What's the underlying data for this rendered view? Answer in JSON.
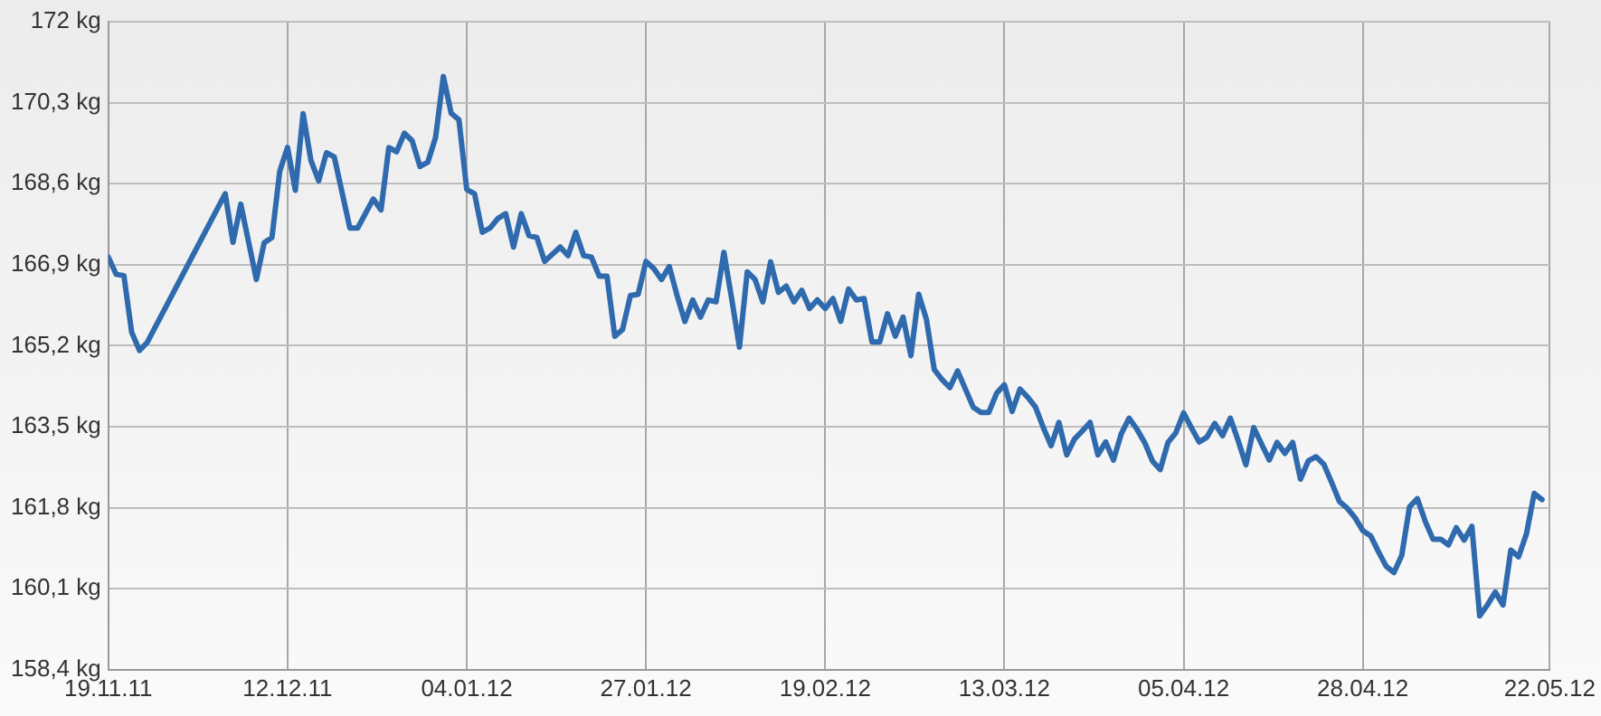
{
  "chart_data": {
    "type": "line",
    "marker": "none",
    "grid": true,
    "legend": false,
    "xlim": [
      "2011-11-19",
      "2012-05-22"
    ],
    "xticks": [
      {
        "value": "2011-11-19",
        "label": "19.11.11"
      },
      {
        "value": "2011-12-12",
        "label": "12.12.11"
      },
      {
        "value": "2012-01-04",
        "label": "04.01.12"
      },
      {
        "value": "2012-01-27",
        "label": "27.01.12"
      },
      {
        "value": "2012-02-19",
        "label": "19.02.12"
      },
      {
        "value": "2012-03-13",
        "label": "13.03.12"
      },
      {
        "value": "2012-04-05",
        "label": "05.04.12"
      },
      {
        "value": "2012-04-28",
        "label": "28.04.12"
      },
      {
        "value": "2012-05-22",
        "label": "22.05.12"
      }
    ],
    "ylim": [
      158.4,
      172
    ],
    "yticks": [
      {
        "value": 158.4,
        "label": "158,4 kg"
      },
      {
        "value": 160.1,
        "label": "160,1 kg"
      },
      {
        "value": 161.8,
        "label": "161,8 kg"
      },
      {
        "value": 163.5,
        "label": "163,5 kg"
      },
      {
        "value": 165.2,
        "label": "165,2 kg"
      },
      {
        "value": 166.9,
        "label": "166,9 kg"
      },
      {
        "value": 168.6,
        "label": "168,6 kg"
      },
      {
        "value": 170.3,
        "label": "170,3 kg"
      },
      {
        "value": 172,
        "label": "172 kg"
      }
    ],
    "series": [
      {
        "color": "#2e6aad",
        "x": [
          "2011-11-19",
          "2011-11-20",
          "2011-11-21",
          "2011-11-22",
          "2011-11-23",
          "2011-11-24",
          "2011-12-04",
          "2011-12-05",
          "2011-12-06",
          "2011-12-08",
          "2011-12-09",
          "2011-12-10",
          "2011-12-11",
          "2011-12-12",
          "2011-12-13",
          "2011-12-14",
          "2011-12-15",
          "2011-12-16",
          "2011-12-17",
          "2011-12-18",
          "2011-12-20",
          "2011-12-21",
          "2011-12-23",
          "2011-12-24",
          "2011-12-25",
          "2011-12-26",
          "2011-12-27",
          "2011-12-28",
          "2011-12-29",
          "2011-12-30",
          "2011-12-31",
          "2012-01-01",
          "2012-01-02",
          "2012-01-03",
          "2012-01-04",
          "2012-01-05",
          "2012-01-06",
          "2012-01-07",
          "2012-01-08",
          "2012-01-09",
          "2012-01-10",
          "2012-01-11",
          "2012-01-12",
          "2012-01-13",
          "2012-01-14",
          "2012-01-16",
          "2012-01-17",
          "2012-01-18",
          "2012-01-19",
          "2012-01-20",
          "2012-01-21",
          "2012-01-22",
          "2012-01-23",
          "2012-01-24",
          "2012-01-25",
          "2012-01-26",
          "2012-01-27",
          "2012-01-28",
          "2012-01-29",
          "2012-01-30",
          "2012-01-31",
          "2012-02-01",
          "2012-02-02",
          "2012-02-03",
          "2012-02-04",
          "2012-02-05",
          "2012-02-06",
          "2012-02-07",
          "2012-02-08",
          "2012-02-09",
          "2012-02-10",
          "2012-02-11",
          "2012-02-12",
          "2012-02-13",
          "2012-02-14",
          "2012-02-15",
          "2012-02-16",
          "2012-02-17",
          "2012-02-18",
          "2012-02-19",
          "2012-02-20",
          "2012-02-21",
          "2012-02-22",
          "2012-02-23",
          "2012-02-24",
          "2012-02-25",
          "2012-02-26",
          "2012-02-27",
          "2012-02-28",
          "2012-02-29",
          "2012-03-01",
          "2012-03-02",
          "2012-03-03",
          "2012-03-04",
          "2012-03-05",
          "2012-03-06",
          "2012-03-07",
          "2012-03-08",
          "2012-03-09",
          "2012-03-10",
          "2012-03-11",
          "2012-03-12",
          "2012-03-13",
          "2012-03-14",
          "2012-03-15",
          "2012-03-16",
          "2012-03-17",
          "2012-03-18",
          "2012-03-19",
          "2012-03-20",
          "2012-03-21",
          "2012-03-22",
          "2012-03-23",
          "2012-03-24",
          "2012-03-25",
          "2012-03-26",
          "2012-03-27",
          "2012-03-28",
          "2012-03-29",
          "2012-03-30",
          "2012-03-31",
          "2012-04-01",
          "2012-04-02",
          "2012-04-03",
          "2012-04-04",
          "2012-04-05",
          "2012-04-06",
          "2012-04-07",
          "2012-04-08",
          "2012-04-09",
          "2012-04-10",
          "2012-04-11",
          "2012-04-12",
          "2012-04-13",
          "2012-04-14",
          "2012-04-15",
          "2012-04-16",
          "2012-04-17",
          "2012-04-18",
          "2012-04-19",
          "2012-04-20",
          "2012-04-21",
          "2012-04-22",
          "2012-04-23",
          "2012-04-24",
          "2012-04-25",
          "2012-04-26",
          "2012-04-27",
          "2012-04-28",
          "2012-04-29",
          "2012-04-30",
          "2012-05-01",
          "2012-05-02",
          "2012-05-03",
          "2012-05-04",
          "2012-05-05",
          "2012-05-06",
          "2012-05-07",
          "2012-05-08",
          "2012-05-09",
          "2012-05-10",
          "2012-05-11",
          "2012-05-12",
          "2012-05-13",
          "2012-05-14",
          "2012-05-15",
          "2012-05-16",
          "2012-05-17",
          "2012-05-18",
          "2012-05-19",
          "2012-05-20",
          "2012-05-21"
        ],
        "values": [
          167.06,
          166.7,
          166.67,
          165.48,
          165.1,
          165.27,
          168.39,
          167.37,
          168.17,
          166.59,
          167.36,
          167.47,
          168.86,
          169.36,
          168.46,
          170.07,
          169.09,
          168.66,
          169.25,
          169.16,
          167.67,
          167.67,
          168.28,
          168.05,
          169.36,
          169.27,
          169.66,
          169.5,
          168.96,
          169.05,
          169.57,
          170.85,
          170.08,
          169.94,
          168.48,
          168.39,
          167.58,
          167.67,
          167.87,
          167.97,
          167.27,
          167.97,
          167.51,
          167.47,
          166.97,
          167.27,
          167.09,
          167.58,
          167.09,
          167.06,
          166.66,
          166.66,
          165.4,
          165.54,
          166.25,
          166.28,
          166.97,
          166.82,
          166.59,
          166.86,
          166.25,
          165.71,
          166.16,
          165.8,
          166.16,
          166.12,
          167.16,
          166.19,
          165.17,
          166.75,
          166.59,
          166.12,
          166.96,
          166.32,
          166.45,
          166.12,
          166.36,
          165.98,
          166.16,
          165.98,
          166.19,
          165.71,
          166.39,
          166.16,
          166.19,
          165.28,
          165.28,
          165.87,
          165.4,
          165.8,
          164.99,
          166.28,
          165.75,
          164.7,
          164.49,
          164.32,
          164.67,
          164.29,
          163.91,
          163.8,
          163.8,
          164.2,
          164.38,
          163.82,
          164.29,
          164.12,
          163.91,
          163.48,
          163.1,
          163.59,
          162.91,
          163.24,
          163.41,
          163.59,
          162.91,
          163.18,
          162.8,
          163.35,
          163.68,
          163.45,
          163.17,
          162.78,
          162.6,
          163.17,
          163.37,
          163.79,
          163.48,
          163.18,
          163.28,
          163.57,
          163.31,
          163.68,
          163.21,
          162.7,
          163.48,
          163.14,
          162.8,
          163.17,
          162.94,
          163.17,
          162.4,
          162.78,
          162.87,
          162.71,
          162.33,
          161.93,
          161.79,
          161.59,
          161.32,
          161.21,
          160.88,
          160.57,
          160.44,
          160.8,
          161.82,
          161.99,
          161.52,
          161.14,
          161.14,
          161.02,
          161.38,
          161.12,
          161.41,
          159.53,
          159.76,
          160.03,
          159.76,
          160.91,
          160.77,
          161.25,
          162.1,
          161.97
        ]
      }
    ]
  }
}
